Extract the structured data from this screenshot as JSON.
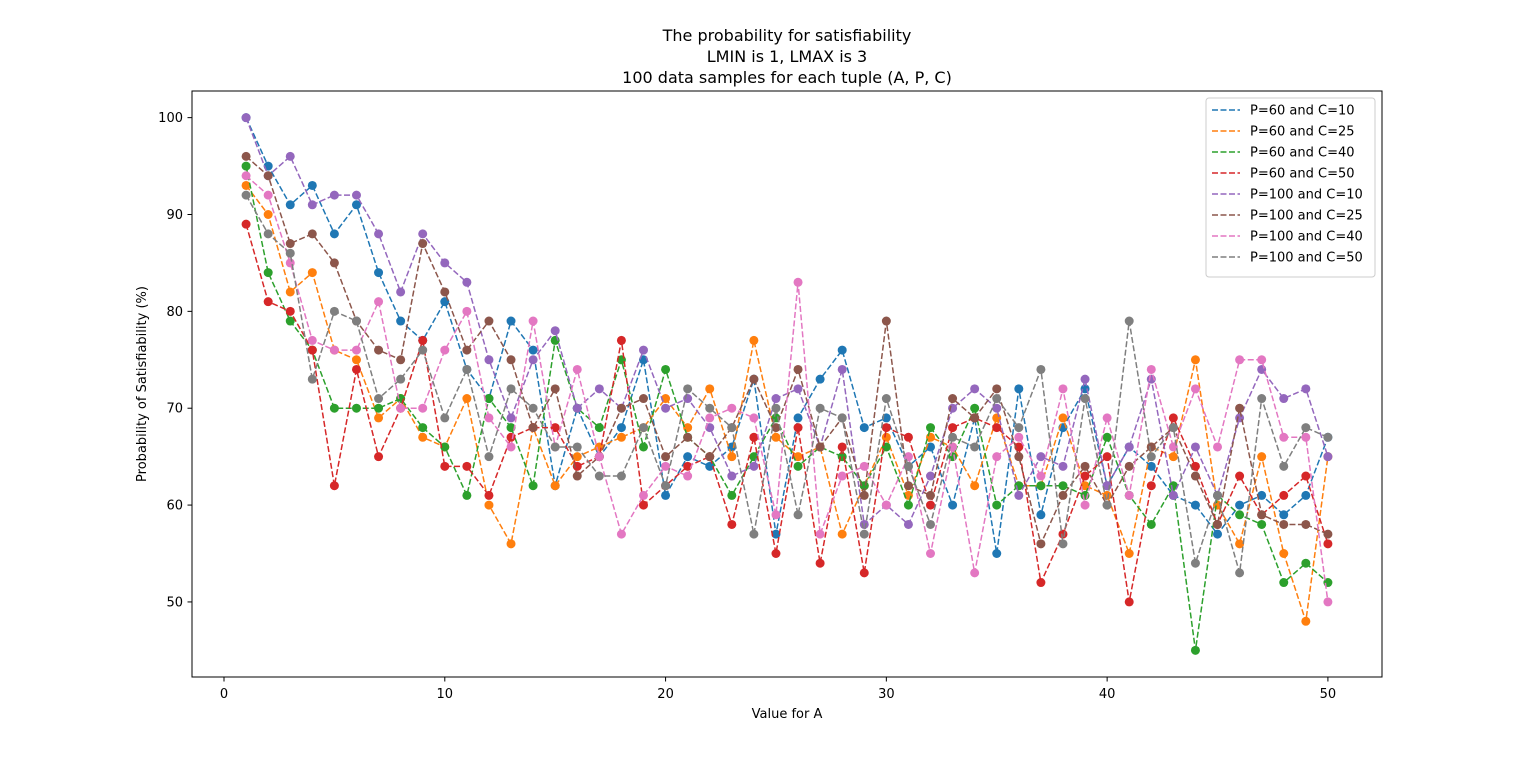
{
  "chart_data": {
    "type": "line",
    "title_lines": [
      "The probability for satisfiability",
      "LMIN is 1, LMAX is 3",
      "100 data samples for each tuple (A, P, C)"
    ],
    "xlabel": "Value for A",
    "ylabel": "Probability of Satisfiability (%)",
    "xlim": [
      -1.45,
      52.45
    ],
    "ylim": [
      42.25,
      102.75
    ],
    "xticks": [
      0,
      10,
      20,
      30,
      40,
      50
    ],
    "yticks": [
      50,
      60,
      70,
      80,
      90,
      100
    ],
    "grid": false,
    "legend_position": "top-right",
    "line_style": "dashed",
    "marker": "circle",
    "x": [
      1,
      2,
      3,
      4,
      5,
      6,
      7,
      8,
      9,
      10,
      11,
      12,
      13,
      14,
      15,
      16,
      17,
      18,
      19,
      20,
      21,
      22,
      23,
      24,
      25,
      26,
      27,
      28,
      29,
      30,
      31,
      32,
      33,
      34,
      35,
      36,
      37,
      38,
      39,
      40,
      41,
      42,
      43,
      44,
      45,
      46,
      47,
      48,
      49,
      50
    ],
    "series": [
      {
        "name": "P=60 and C=10",
        "color": "#1f77b4",
        "values": [
          100,
          95,
          91,
          93,
          88,
          91,
          84,
          79,
          77,
          81,
          74,
          71,
          79,
          76,
          62,
          70,
          65,
          68,
          75,
          61,
          65,
          64,
          66,
          73,
          57,
          69,
          73,
          76,
          68,
          69,
          64,
          66,
          60,
          69,
          55,
          72,
          59,
          68,
          72,
          62,
          66,
          64,
          61,
          60,
          57,
          60,
          61,
          59,
          61,
          67
        ]
      },
      {
        "name": "P=60 and C=25",
        "color": "#ff7f0e",
        "values": [
          93,
          90,
          82,
          84,
          76,
          75,
          69,
          71,
          67,
          66,
          71,
          60,
          56,
          68,
          62,
          65,
          66,
          67,
          68,
          71,
          68,
          72,
          65,
          77,
          67,
          65,
          66,
          57,
          62,
          67,
          61,
          67,
          66,
          62,
          69,
          62,
          62,
          69,
          62,
          61,
          55,
          66,
          65,
          75,
          60,
          56,
          65,
          55,
          48,
          65
        ]
      },
      {
        "name": "P=60 and C=40",
        "color": "#2ca02c",
        "values": [
          95,
          84,
          79,
          76,
          70,
          70,
          70,
          71,
          68,
          66,
          61,
          71,
          68,
          62,
          77,
          70,
          68,
          75,
          66,
          74,
          67,
          65,
          61,
          65,
          69,
          64,
          66,
          65,
          62,
          66,
          60,
          68,
          65,
          70,
          60,
          62,
          62,
          62,
          61,
          67,
          61,
          58,
          62,
          45,
          61,
          59,
          58,
          52,
          54,
          52
        ]
      },
      {
        "name": "P=60 and C=50",
        "color": "#d62728",
        "values": [
          89,
          81,
          80,
          76,
          62,
          74,
          65,
          70,
          77,
          64,
          64,
          61,
          67,
          68,
          68,
          64,
          65,
          77,
          60,
          62,
          64,
          65,
          58,
          67,
          55,
          68,
          54,
          66,
          53,
          68,
          67,
          60,
          68,
          69,
          68,
          66,
          52,
          57,
          63,
          65,
          50,
          62,
          69,
          64,
          58,
          63,
          59,
          61,
          63,
          56
        ]
      },
      {
        "name": "P=100 and C=10",
        "color": "#9467bd",
        "values": [
          100,
          94,
          96,
          91,
          92,
          92,
          88,
          82,
          88,
          85,
          83,
          75,
          69,
          75,
          78,
          70,
          72,
          70,
          76,
          70,
          71,
          68,
          63,
          64,
          71,
          72,
          66,
          74,
          58,
          60,
          58,
          63,
          70,
          72,
          70,
          61,
          65,
          64,
          73,
          62,
          66,
          73,
          61,
          66,
          61,
          69,
          74,
          71,
          72,
          65
        ]
      },
      {
        "name": "P=100 and C=25",
        "color": "#8c564b",
        "values": [
          96,
          94,
          87,
          88,
          85,
          79,
          76,
          75,
          87,
          82,
          76,
          79,
          75,
          68,
          72,
          63,
          65,
          70,
          71,
          65,
          67,
          65,
          68,
          73,
          68,
          74,
          66,
          69,
          61,
          79,
          62,
          61,
          71,
          69,
          72,
          65,
          56,
          61,
          64,
          60,
          64,
          66,
          68,
          63,
          58,
          70,
          59,
          58,
          58,
          57
        ]
      },
      {
        "name": "P=100 and C=40",
        "color": "#e377c2",
        "values": [
          94,
          92,
          85,
          77,
          76,
          76,
          81,
          70,
          70,
          76,
          80,
          69,
          66,
          79,
          66,
          74,
          65,
          57,
          61,
          64,
          63,
          69,
          70,
          69,
          59,
          83,
          57,
          63,
          64,
          60,
          65,
          55,
          66,
          53,
          65,
          67,
          63,
          72,
          60,
          69,
          61,
          74,
          66,
          72,
          66,
          75,
          75,
          67,
          67,
          50
        ]
      },
      {
        "name": "P=100 and C=50",
        "color": "#7f7f7f",
        "values": [
          92,
          88,
          86,
          73,
          80,
          79,
          71,
          73,
          76,
          69,
          74,
          65,
          72,
          70,
          66,
          66,
          63,
          63,
          68,
          62,
          72,
          70,
          68,
          57,
          70,
          59,
          70,
          69,
          57,
          71,
          64,
          58,
          67,
          66,
          71,
          68,
          74,
          56,
          71,
          60,
          79,
          65,
          68,
          54,
          61,
          53,
          71,
          64,
          68,
          67
        ]
      }
    ]
  }
}
